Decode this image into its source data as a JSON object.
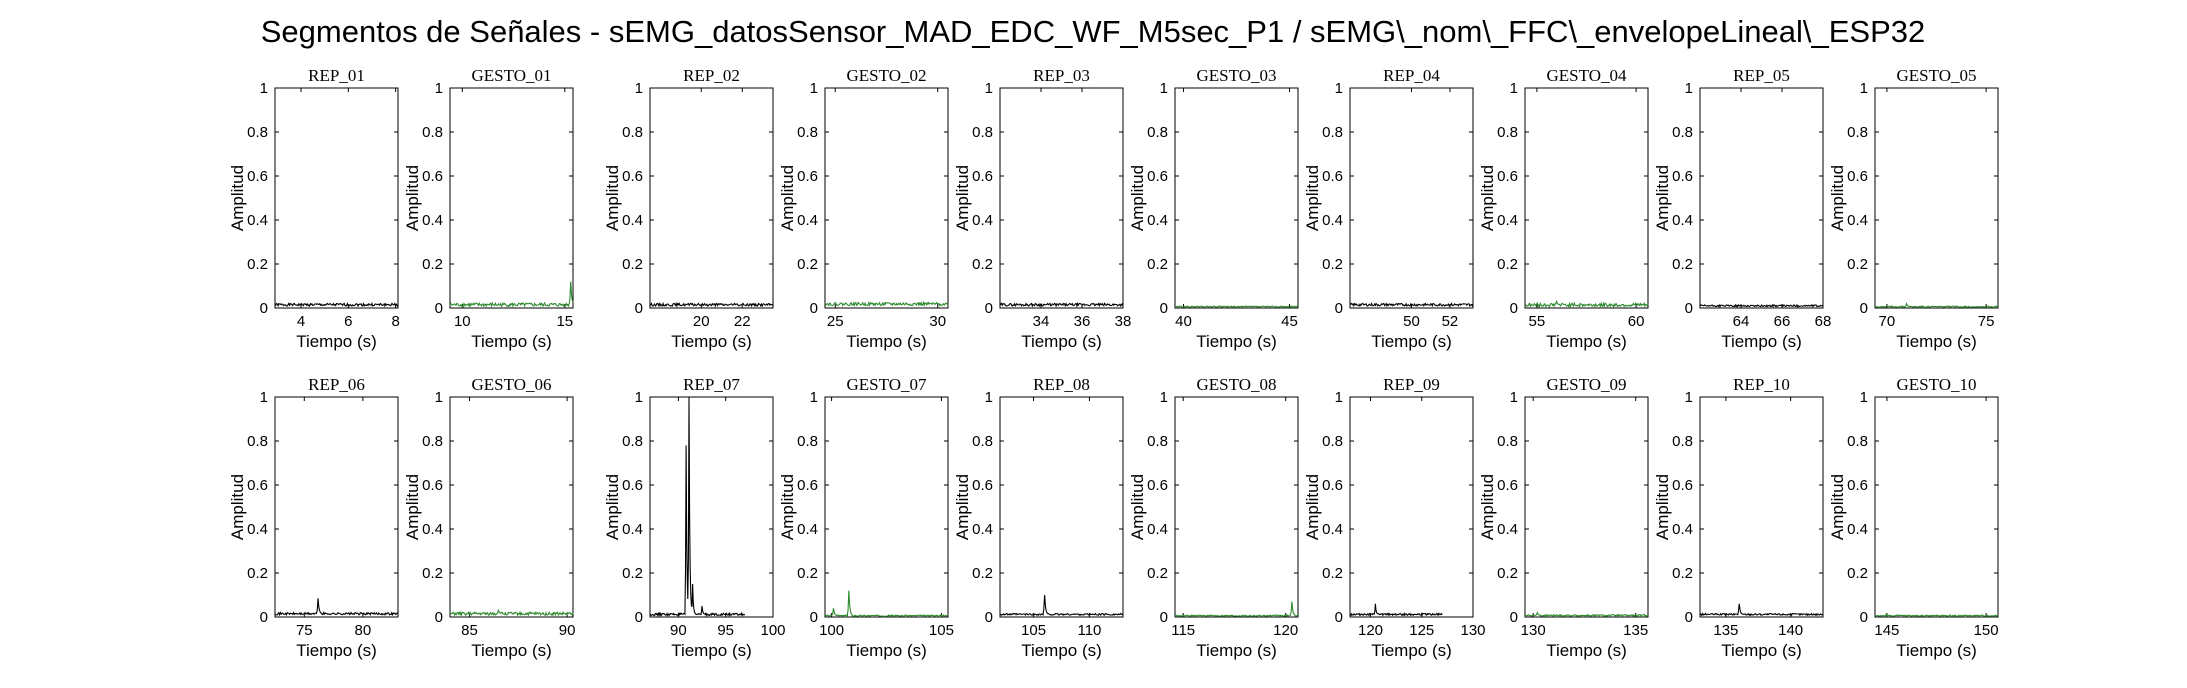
{
  "figure": {
    "title": "Segmentos de Señales - sEMG_datosSensor_MAD_EDC_WF_M5sec_P1 / sEMG\\_nom\\_FFC\\_envelopeLineal\\_ESP32",
    "colors": {
      "rep": "#000000",
      "gesto": "#2e8b2e",
      "axis": "#000000",
      "background": "#ffffff"
    }
  },
  "chart_data": [
    {
      "type": "line",
      "title": "REP_01",
      "xlabel": "Tiempo (s)",
      "ylabel": "Amplitud",
      "xlim": [
        2.9,
        8.1
      ],
      "ylim": [
        0,
        1
      ],
      "xticks": [
        4,
        6,
        8
      ],
      "yticks": [
        0,
        0.2,
        0.4,
        0.6,
        0.8,
        1
      ],
      "series": [
        {
          "color": "#000000",
          "base": 0.015,
          "noise": 0.006,
          "peaks": []
        }
      ]
    },
    {
      "type": "line",
      "title": "GESTO_01",
      "xlabel": "Tiempo (s)",
      "ylabel": "Amplitud",
      "xlim": [
        9.4,
        15.4
      ],
      "ylim": [
        0,
        1
      ],
      "xticks": [
        10,
        15
      ],
      "yticks": [
        0,
        0.2,
        0.4,
        0.6,
        0.8,
        1
      ],
      "series": [
        {
          "color": "#2e8b2e",
          "base": 0.015,
          "noise": 0.008,
          "peaks": [
            [
              15.3,
              0.12
            ]
          ]
        }
      ]
    },
    {
      "type": "line",
      "title": "REP_02",
      "xlabel": "Tiempo (s)",
      "ylabel": "Amplitud",
      "xlim": [
        17.5,
        23.5
      ],
      "ylim": [
        0,
        1
      ],
      "xticks": [
        20,
        22
      ],
      "yticks": [
        0,
        0.2,
        0.4,
        0.6,
        0.8,
        1
      ],
      "series": [
        {
          "color": "#000000",
          "base": 0.015,
          "noise": 0.006,
          "peaks": []
        }
      ]
    },
    {
      "type": "line",
      "title": "GESTO_02",
      "xlabel": "Tiempo (s)",
      "ylabel": "Amplitud",
      "xlim": [
        24.5,
        30.5
      ],
      "ylim": [
        0,
        1
      ],
      "xticks": [
        25,
        30
      ],
      "yticks": [
        0,
        0.2,
        0.4,
        0.6,
        0.8,
        1
      ],
      "series": [
        {
          "color": "#2e8b2e",
          "base": 0.018,
          "noise": 0.007,
          "peaks": []
        }
      ]
    },
    {
      "type": "line",
      "title": "REP_03",
      "xlabel": "Tiempo (s)",
      "ylabel": "Amplitud",
      "xlim": [
        32.0,
        38.0
      ],
      "ylim": [
        0,
        1
      ],
      "xticks": [
        34,
        36,
        38
      ],
      "yticks": [
        0,
        0.2,
        0.4,
        0.6,
        0.8,
        1
      ],
      "series": [
        {
          "color": "#000000",
          "base": 0.015,
          "noise": 0.006,
          "peaks": []
        }
      ]
    },
    {
      "type": "line",
      "title": "GESTO_03",
      "xlabel": "Tiempo (s)",
      "ylabel": "Amplitud",
      "xlim": [
        39.6,
        45.4
      ],
      "ylim": [
        0,
        1
      ],
      "xticks": [
        40,
        45
      ],
      "yticks": [
        0,
        0.2,
        0.4,
        0.6,
        0.8,
        1
      ],
      "series": [
        {
          "color": "#2e8b2e",
          "base": 0.006,
          "noise": 0.003,
          "peaks": []
        }
      ]
    },
    {
      "type": "line",
      "title": "REP_04",
      "xlabel": "Tiempo (s)",
      "ylabel": "Amplitud",
      "xlim": [
        46.8,
        53.2
      ],
      "ylim": [
        0,
        1
      ],
      "xticks": [
        50,
        52
      ],
      "yticks": [
        0,
        0.2,
        0.4,
        0.6,
        0.8,
        1
      ],
      "series": [
        {
          "color": "#000000",
          "base": 0.015,
          "noise": 0.006,
          "peaks": []
        }
      ]
    },
    {
      "type": "line",
      "title": "GESTO_04",
      "xlabel": "Tiempo (s)",
      "ylabel": "Amplitud",
      "xlim": [
        54.4,
        60.6
      ],
      "ylim": [
        0,
        1
      ],
      "xticks": [
        55,
        60
      ],
      "yticks": [
        0,
        0.2,
        0.4,
        0.6,
        0.8,
        1
      ],
      "series": [
        {
          "color": "#2e8b2e",
          "base": 0.014,
          "noise": 0.008,
          "peaks": [
            [
              56.0,
              0.03
            ]
          ]
        }
      ]
    },
    {
      "type": "line",
      "title": "REP_05",
      "xlabel": "Tiempo (s)",
      "ylabel": "Amplitud",
      "xlim": [
        62.0,
        68.0
      ],
      "ylim": [
        0,
        1
      ],
      "xticks": [
        64,
        66,
        68
      ],
      "yticks": [
        0,
        0.2,
        0.4,
        0.6,
        0.8,
        1
      ],
      "series": [
        {
          "color": "#000000",
          "base": 0.01,
          "noise": 0.004,
          "peaks": []
        }
      ]
    },
    {
      "type": "line",
      "title": "GESTO_05",
      "xlabel": "Tiempo (s)",
      "ylabel": "Amplitud",
      "xlim": [
        69.4,
        75.6
      ],
      "ylim": [
        0,
        1
      ],
      "xticks": [
        70,
        75
      ],
      "yticks": [
        0,
        0.2,
        0.4,
        0.6,
        0.8,
        1
      ],
      "series": [
        {
          "color": "#2e8b2e",
          "base": 0.006,
          "noise": 0.003,
          "peaks": [
            [
              71.0,
              0.02
            ]
          ]
        }
      ]
    },
    {
      "type": "line",
      "title": "REP_06",
      "xlabel": "Tiempo (s)",
      "ylabel": "Amplitud",
      "xlim": [
        72.5,
        83.0
      ],
      "ylim": [
        0,
        1
      ],
      "xticks": [
        75,
        80
      ],
      "yticks": [
        0,
        0.2,
        0.4,
        0.6,
        0.8,
        1
      ],
      "series": [
        {
          "color": "#000000",
          "base": 0.015,
          "noise": 0.005,
          "peaks": [
            [
              76.2,
              0.085
            ]
          ]
        }
      ]
    },
    {
      "type": "line",
      "title": "GESTO_06",
      "xlabel": "Tiempo (s)",
      "ylabel": "Amplitud",
      "xlim": [
        84.0,
        90.3
      ],
      "ylim": [
        0,
        1
      ],
      "xticks": [
        85,
        90
      ],
      "yticks": [
        0,
        0.2,
        0.4,
        0.6,
        0.8,
        1
      ],
      "series": [
        {
          "color": "#2e8b2e",
          "base": 0.015,
          "noise": 0.007,
          "peaks": [
            [
              86.5,
              0.03
            ]
          ]
        }
      ]
    },
    {
      "type": "line",
      "title": "REP_07",
      "xlabel": "Tiempo (s)",
      "ylabel": "Amplitud",
      "xlim": [
        87.0,
        100.0
      ],
      "ylim": [
        0,
        1
      ],
      "xticks": [
        90,
        95,
        100
      ],
      "yticks": [
        0,
        0.2,
        0.4,
        0.6,
        0.8,
        1
      ],
      "series": [
        {
          "color": "#000000",
          "base": 0.012,
          "noise": 0.005,
          "peaks": [
            [
              90.8,
              0.78
            ],
            [
              91.1,
              1.0
            ],
            [
              91.5,
              0.15
            ],
            [
              92.5,
              0.05
            ]
          ],
          "x_end": 97.0
        }
      ]
    },
    {
      "type": "line",
      "title": "GESTO_07",
      "xlabel": "Tiempo (s)",
      "ylabel": "Amplitud",
      "xlim": [
        99.7,
        105.3
      ],
      "ylim": [
        0,
        1
      ],
      "xticks": [
        100,
        105
      ],
      "yticks": [
        0,
        0.2,
        0.4,
        0.6,
        0.8,
        1
      ],
      "series": [
        {
          "color": "#2e8b2e",
          "base": 0.006,
          "noise": 0.003,
          "peaks": [
            [
              100.1,
              0.04
            ],
            [
              100.8,
              0.12
            ]
          ]
        }
      ]
    },
    {
      "type": "line",
      "title": "REP_08",
      "xlabel": "Tiempo (s)",
      "ylabel": "Amplitud",
      "xlim": [
        102.0,
        113.0
      ],
      "ylim": [
        0,
        1
      ],
      "xticks": [
        105,
        110
      ],
      "yticks": [
        0,
        0.2,
        0.4,
        0.6,
        0.8,
        1
      ],
      "series": [
        {
          "color": "#000000",
          "base": 0.012,
          "noise": 0.004,
          "peaks": [
            [
              106.0,
              0.1
            ]
          ]
        }
      ]
    },
    {
      "type": "line",
      "title": "GESTO_08",
      "xlabel": "Tiempo (s)",
      "ylabel": "Amplitud",
      "xlim": [
        114.6,
        120.6
      ],
      "ylim": [
        0,
        1
      ],
      "xticks": [
        115,
        120
      ],
      "yticks": [
        0,
        0.2,
        0.4,
        0.6,
        0.8,
        1
      ],
      "series": [
        {
          "color": "#2e8b2e",
          "base": 0.006,
          "noise": 0.003,
          "peaks": [
            [
              120.3,
              0.07
            ]
          ]
        }
      ]
    },
    {
      "type": "line",
      "title": "REP_09",
      "xlabel": "Tiempo (s)",
      "ylabel": "Amplitud",
      "xlim": [
        118.0,
        130.0
      ],
      "ylim": [
        0,
        1
      ],
      "xticks": [
        120,
        125,
        130
      ],
      "yticks": [
        0,
        0.2,
        0.4,
        0.6,
        0.8,
        1
      ],
      "series": [
        {
          "color": "#000000",
          "base": 0.012,
          "noise": 0.004,
          "peaks": [
            [
              120.5,
              0.06
            ]
          ],
          "x_end": 127.0
        }
      ]
    },
    {
      "type": "line",
      "title": "GESTO_09",
      "xlabel": "Tiempo (s)",
      "ylabel": "Amplitud",
      "xlim": [
        129.6,
        135.6
      ],
      "ylim": [
        0,
        1
      ],
      "xticks": [
        130,
        135
      ],
      "yticks": [
        0,
        0.2,
        0.4,
        0.6,
        0.8,
        1
      ],
      "series": [
        {
          "color": "#2e8b2e",
          "base": 0.007,
          "noise": 0.004,
          "peaks": [
            [
              130.2,
              0.02
            ]
          ]
        }
      ]
    },
    {
      "type": "line",
      "title": "REP_10",
      "xlabel": "Tiempo (s)",
      "ylabel": "Amplitud",
      "xlim": [
        133.0,
        142.5
      ],
      "ylim": [
        0,
        1
      ],
      "xticks": [
        135,
        140
      ],
      "yticks": [
        0,
        0.2,
        0.4,
        0.6,
        0.8,
        1
      ],
      "series": [
        {
          "color": "#000000",
          "base": 0.012,
          "noise": 0.004,
          "peaks": [
            [
              136.0,
              0.06
            ]
          ]
        }
      ]
    },
    {
      "type": "line",
      "title": "GESTO_10",
      "xlabel": "Tiempo (s)",
      "ylabel": "Amplitud",
      "xlim": [
        144.4,
        150.6
      ],
      "ylim": [
        0,
        1
      ],
      "xticks": [
        145,
        150
      ],
      "yticks": [
        0,
        0.2,
        0.4,
        0.6,
        0.8,
        1
      ],
      "series": [
        {
          "color": "#2e8b2e",
          "base": 0.006,
          "noise": 0.003,
          "peaks": [
            [
              145.0,
              0.015
            ]
          ]
        }
      ]
    }
  ]
}
